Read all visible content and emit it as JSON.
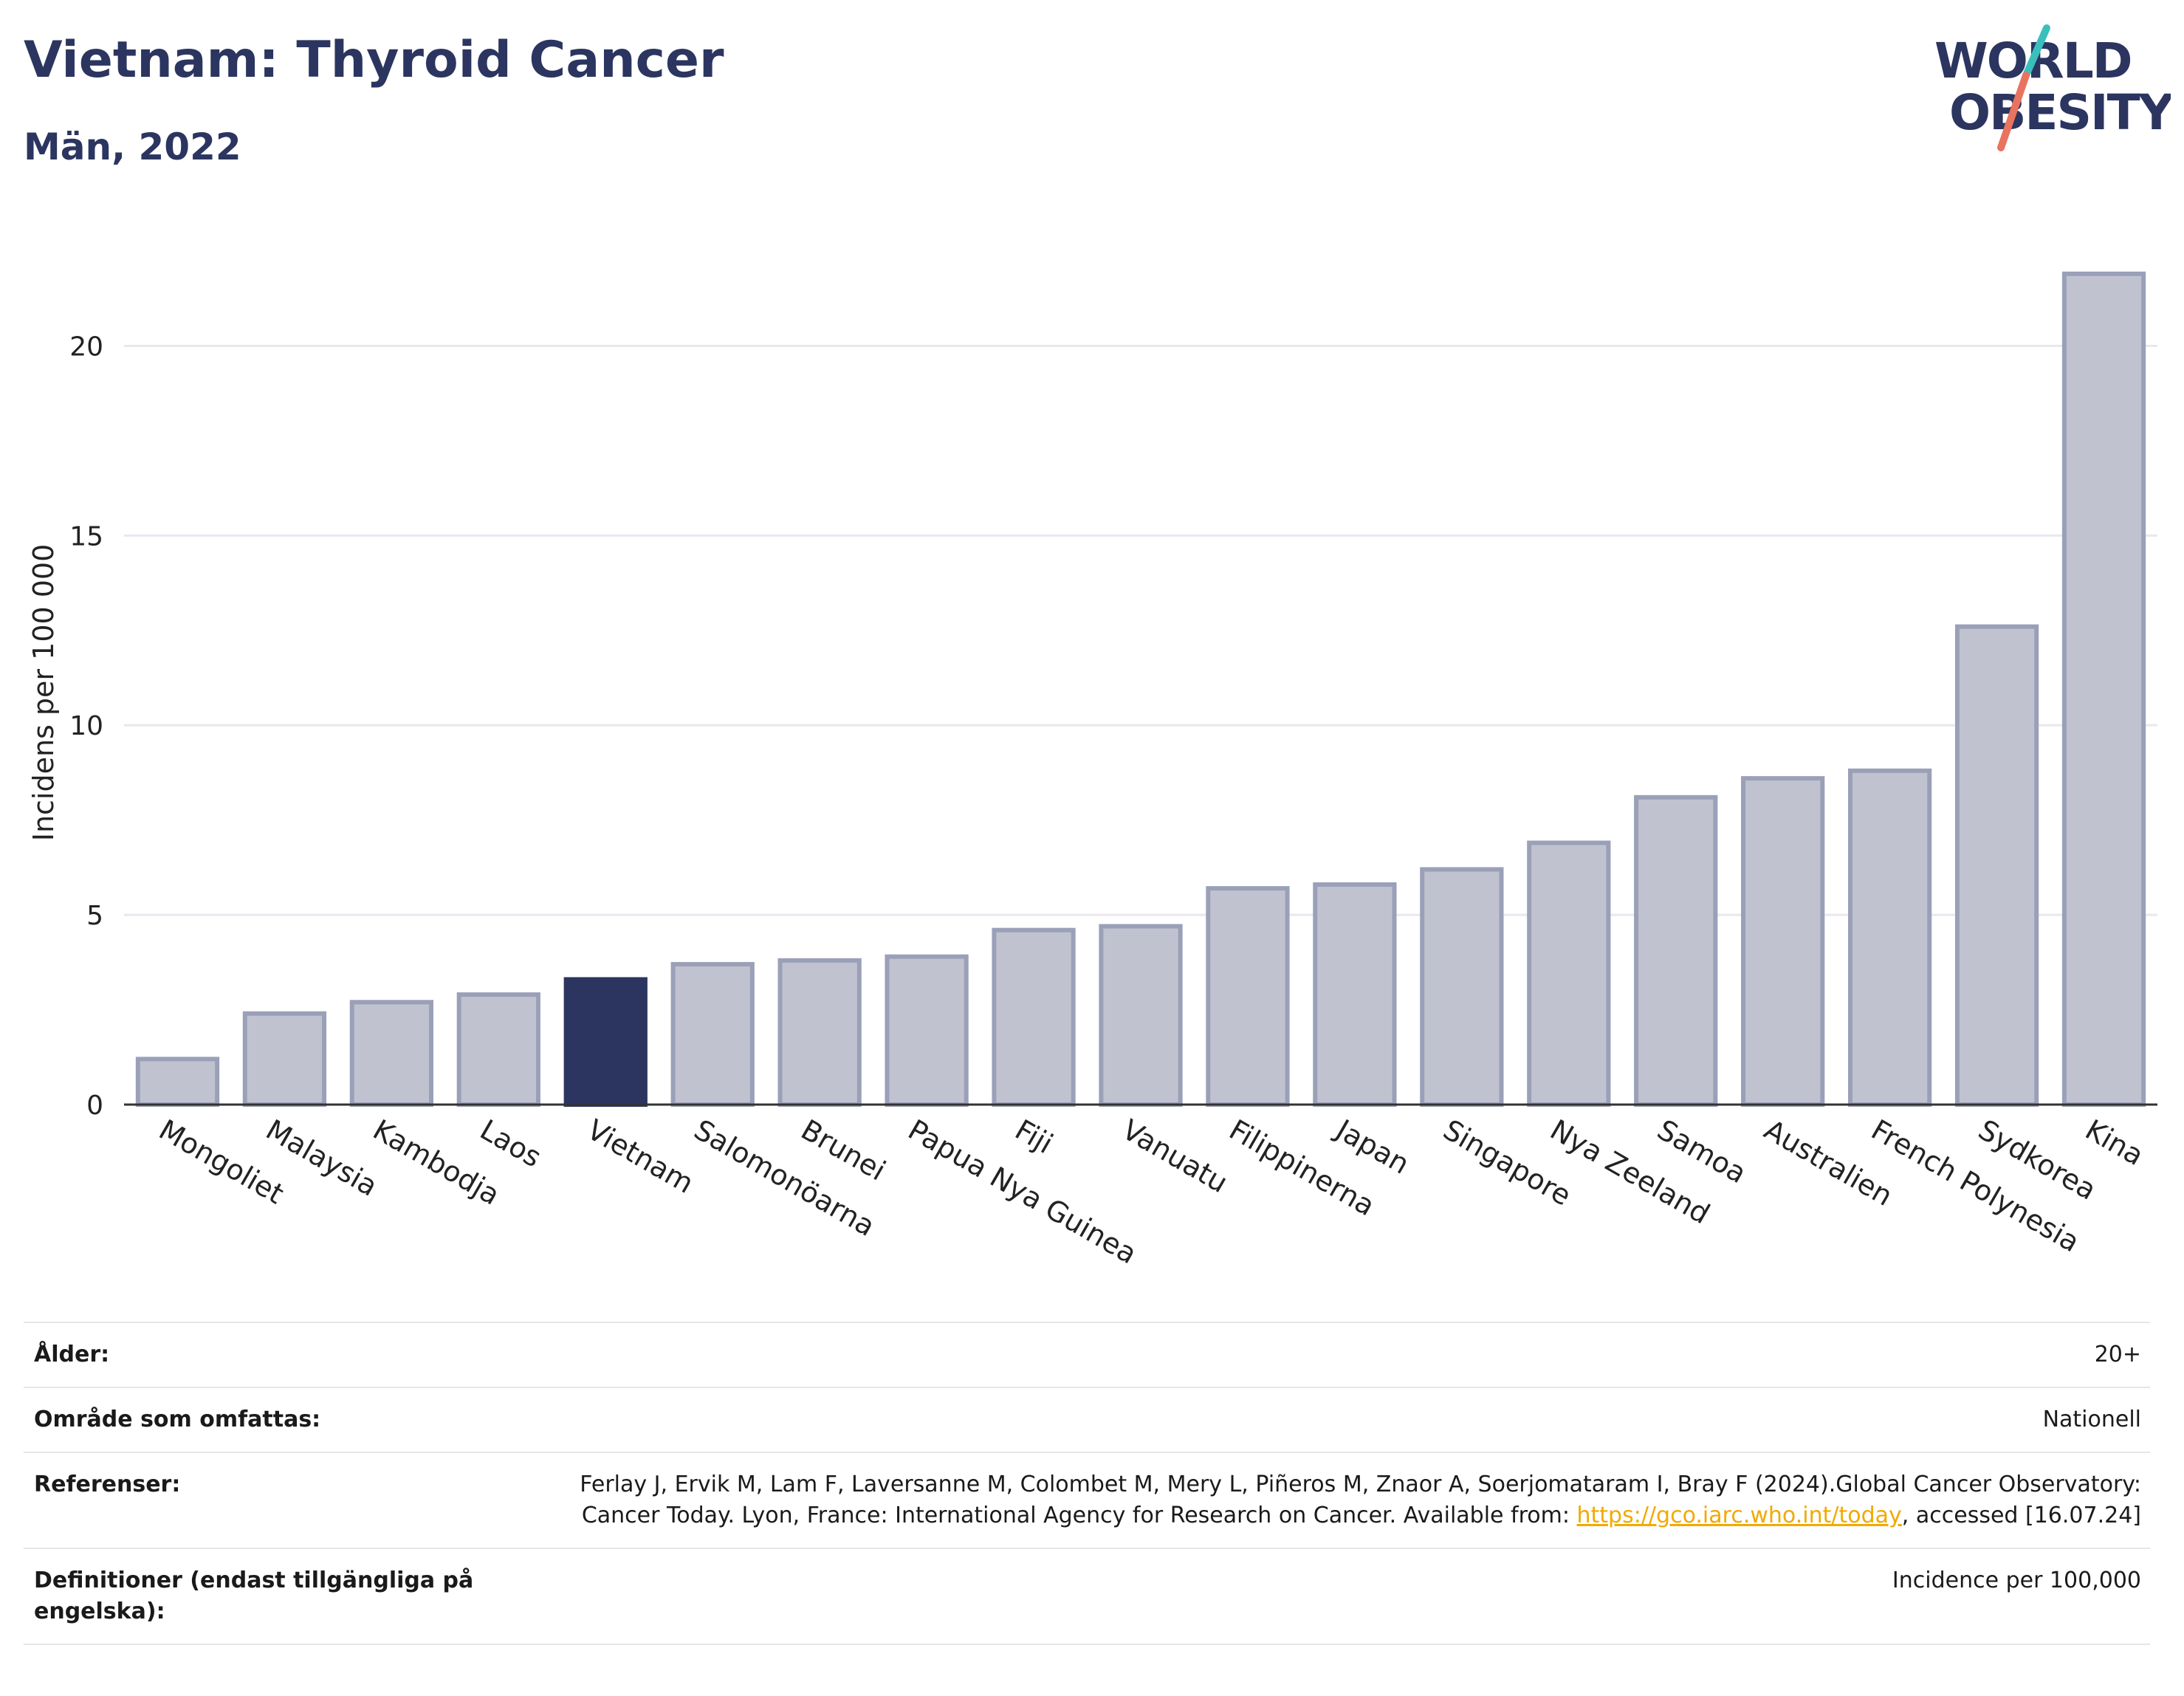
{
  "header": {
    "title": "Vietnam: Thyroid Cancer",
    "subtitle": "Män, 2022",
    "logo_line1": "WORLD",
    "logo_line2": "OBESITY"
  },
  "colors": {
    "highlight": "#2b3560",
    "bar": "#c0c3cf",
    "bar_border": "#9aa0b8",
    "title": "#2b3560",
    "logo_teal": "#3bbfbd",
    "logo_coral": "#e8735f"
  },
  "chart_data": {
    "type": "bar",
    "ylabel": "Incidens per 100 000",
    "xlabel": "",
    "ylim": [
      0,
      22.5
    ],
    "yticks": [
      0,
      5,
      10,
      15,
      20
    ],
    "grid": true,
    "highlight": "Vietnam",
    "categories": [
      "Mongoliet",
      "Malaysia",
      "Kambodja",
      "Laos",
      "Vietnam",
      "Salomonöarna",
      "Brunei",
      "Papua Nya Guinea",
      "Fiji",
      "Vanuatu",
      "Filippinerna",
      "Japan",
      "Singapore",
      "Nya Zeeland",
      "Samoa",
      "Australien",
      "French Polynesia",
      "Sydkorea",
      "Kina"
    ],
    "values": [
      1.2,
      2.4,
      2.7,
      2.9,
      3.3,
      3.7,
      3.8,
      3.9,
      4.6,
      4.7,
      5.7,
      5.8,
      6.2,
      6.9,
      8.1,
      8.6,
      8.8,
      12.6,
      21.9
    ]
  },
  "meta": {
    "age_label": "Ålder:",
    "age_value": "20+",
    "area_label": "Område som omfattas:",
    "area_value": "Nationell",
    "ref_label": "Referenser:",
    "ref_text_1": "Ferlay J, Ervik M, Lam F, Laversanne M, Colombet M, Mery L, Piñeros M, Znaor A, Soerjomataram I, Bray F (2024).Global Cancer Observatory: Cancer Today. Lyon, France: International Agency for Research on Cancer. Available from: ",
    "ref_link": "https://gco.iarc.who.int/today",
    "ref_text_2": ", accessed [16.07.24]",
    "def_label": "Definitioner (endast tillgängliga på engelska):",
    "def_value": "Incidence per 100,000"
  }
}
